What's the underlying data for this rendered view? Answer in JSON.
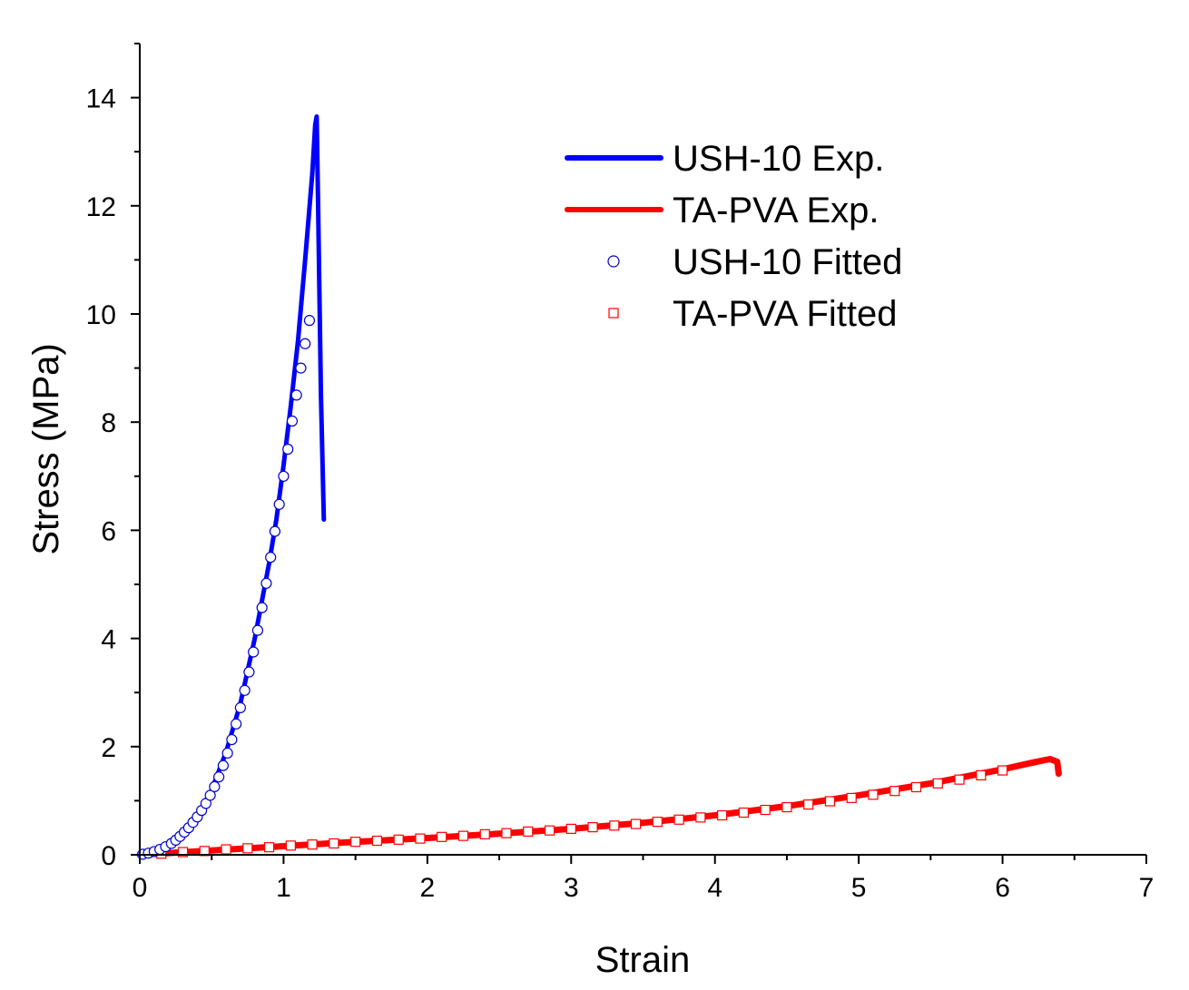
{
  "chart_data": {
    "type": "line",
    "title": "",
    "xlabel": "Strain",
    "ylabel": "Stress (MPa)",
    "xlim": [
      0,
      7
    ],
    "ylim": [
      0,
      15
    ],
    "x_ticks": [
      0,
      1,
      2,
      3,
      4,
      5,
      6,
      7
    ],
    "y_ticks": [
      0,
      2,
      4,
      6,
      8,
      10,
      12,
      14
    ],
    "grid": false,
    "legend_position": "top-right",
    "series": [
      {
        "name": "USH-10 Exp.",
        "style": "line",
        "color": "#0000ff",
        "x": [
          0,
          0.1,
          0.2,
          0.3,
          0.4,
          0.5,
          0.6,
          0.7,
          0.8,
          0.9,
          0.95,
          1.0,
          1.05,
          1.1,
          1.15,
          1.2,
          1.22,
          1.23,
          1.24,
          1.26,
          1.28
        ],
        "y": [
          0,
          0.05,
          0.15,
          0.35,
          0.7,
          1.2,
          1.9,
          2.8,
          4.0,
          5.4,
          6.2,
          7.2,
          8.3,
          9.5,
          11.0,
          12.6,
          13.5,
          13.65,
          12.0,
          8.5,
          6.2
        ]
      },
      {
        "name": "TA-PVA Exp.",
        "style": "line",
        "color": "#ff0000",
        "x": [
          0,
          0.5,
          1.0,
          1.5,
          2.0,
          2.5,
          3.0,
          3.5,
          4.0,
          4.5,
          5.0,
          5.5,
          6.0,
          6.2,
          6.33,
          6.38,
          6.39
        ],
        "y": [
          0,
          0.08,
          0.16,
          0.24,
          0.31,
          0.39,
          0.48,
          0.59,
          0.73,
          0.9,
          1.1,
          1.32,
          1.58,
          1.7,
          1.77,
          1.72,
          1.5
        ]
      },
      {
        "name": "USH-10 Fitted",
        "style": "scatter",
        "marker": "circle",
        "color": "#0000cc",
        "x": [
          0.02,
          0.06,
          0.1,
          0.14,
          0.18,
          0.22,
          0.25,
          0.28,
          0.31,
          0.34,
          0.37,
          0.4,
          0.43,
          0.46,
          0.49,
          0.52,
          0.55,
          0.58,
          0.61,
          0.64,
          0.67,
          0.7,
          0.73,
          0.76,
          0.79,
          0.82,
          0.85,
          0.88,
          0.91,
          0.94,
          0.97,
          1.0,
          1.03,
          1.06,
          1.09,
          1.12,
          1.15,
          1.18
        ],
        "y": [
          0.01,
          0.03,
          0.06,
          0.1,
          0.15,
          0.21,
          0.27,
          0.34,
          0.42,
          0.5,
          0.6,
          0.7,
          0.82,
          0.95,
          1.1,
          1.26,
          1.44,
          1.65,
          1.88,
          2.13,
          2.42,
          2.72,
          3.04,
          3.38,
          3.75,
          4.15,
          4.57,
          5.02,
          5.5,
          5.98,
          6.48,
          7.0,
          7.5,
          8.02,
          8.5,
          9.0,
          9.45,
          9.88
        ]
      },
      {
        "name": "TA-PVA Fitted",
        "style": "scatter",
        "marker": "square",
        "color": "#ff0000",
        "x": [
          0.15,
          0.3,
          0.45,
          0.6,
          0.75,
          0.9,
          1.05,
          1.2,
          1.35,
          1.5,
          1.65,
          1.8,
          1.95,
          2.1,
          2.25,
          2.4,
          2.55,
          2.7,
          2.85,
          3.0,
          3.15,
          3.3,
          3.45,
          3.6,
          3.75,
          3.9,
          4.05,
          4.2,
          4.35,
          4.5,
          4.65,
          4.8,
          4.95,
          5.1,
          5.25,
          5.4,
          5.55,
          5.7,
          5.85,
          6.0
        ],
        "y": [
          0.02,
          0.05,
          0.07,
          0.1,
          0.12,
          0.14,
          0.17,
          0.19,
          0.21,
          0.24,
          0.26,
          0.28,
          0.3,
          0.33,
          0.35,
          0.38,
          0.4,
          0.43,
          0.45,
          0.48,
          0.51,
          0.54,
          0.57,
          0.61,
          0.65,
          0.69,
          0.73,
          0.78,
          0.83,
          0.88,
          0.93,
          0.99,
          1.05,
          1.11,
          1.18,
          1.25,
          1.32,
          1.39,
          1.47,
          1.56
        ]
      }
    ]
  }
}
